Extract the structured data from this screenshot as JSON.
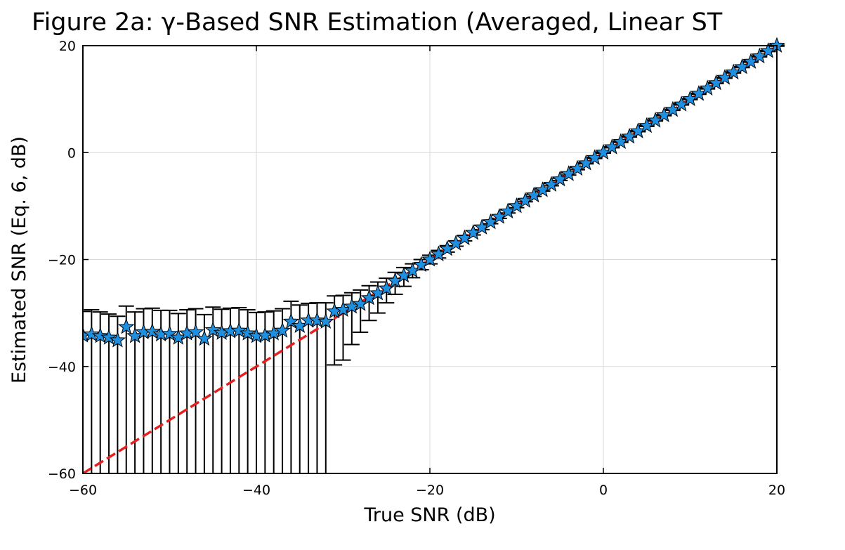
{
  "chart_data": {
    "type": "scatter",
    "title": "Figure 2a: γ-Based SNR Estimation (Averaged, Linear ST",
    "xlabel": "True SNR (dB)",
    "ylabel": "Estimated SNR (Eq. 6, dB)",
    "xlim": [
      -60,
      20
    ],
    "ylim": [
      -60,
      20
    ],
    "xticks": [
      -60,
      -40,
      -20,
      0,
      20
    ],
    "yticks": [
      -60,
      -40,
      -20,
      0,
      20
    ],
    "xtick_labels": [
      "−60",
      "−40",
      "−20",
      "0",
      "20"
    ],
    "ytick_labels": [
      "−60",
      "−40",
      "−20",
      "0",
      "20"
    ],
    "grid": true,
    "legend": "none",
    "colors": {
      "marker": "#1f8fe0",
      "reference_line": "#e81f1f",
      "errorbar": "#000000"
    },
    "reference_line": {
      "style": "dashed",
      "points": [
        [
          -60,
          -60
        ],
        [
          20,
          20
        ]
      ]
    },
    "series": [
      {
        "marker": "star",
        "x": [
          -60,
          -59,
          -58,
          -57,
          -56,
          -55,
          -54,
          -53,
          -52,
          -51,
          -50,
          -49,
          -48,
          -47,
          -46,
          -45,
          -44,
          -43,
          -42,
          -41,
          -40,
          -39,
          -38,
          -37,
          -36,
          -35,
          -34,
          -33,
          -32,
          -31,
          -30,
          -29,
          -28,
          -27,
          -26,
          -25,
          -24,
          -23,
          -22,
          -21,
          -20,
          -19,
          -18,
          -17,
          -16,
          -15,
          -14,
          -13,
          -12,
          -11,
          -10,
          -9,
          -8,
          -7,
          -6,
          -5,
          -4,
          -3,
          -2,
          -1,
          0,
          1,
          2,
          3,
          4,
          5,
          6,
          7,
          8,
          9,
          10,
          11,
          12,
          13,
          14,
          15,
          16,
          17,
          18,
          19,
          20
        ],
        "y": [
          -34.2,
          -34.0,
          -34.3,
          -34.6,
          -35.1,
          -32.6,
          -34.3,
          -33.6,
          -33.5,
          -34.0,
          -33.9,
          -34.6,
          -33.8,
          -33.6,
          -34.8,
          -33.2,
          -33.7,
          -33.4,
          -33.3,
          -33.8,
          -34.3,
          -34.2,
          -33.8,
          -33.3,
          -31.6,
          -32.4,
          -31.4,
          -31.4,
          -31.6,
          -29.7,
          -29.4,
          -28.8,
          -28.3,
          -27.2,
          -26.3,
          -25.4,
          -24.0,
          -23.0,
          -22.1,
          -21.0,
          -20.0,
          -19.0,
          -18.0,
          -17.0,
          -16.0,
          -15.0,
          -14.0,
          -13.0,
          -12.0,
          -11.0,
          -10.0,
          -9.0,
          -8.0,
          -7.0,
          -6.0,
          -5.0,
          -4.0,
          -3.0,
          -2.0,
          -1.0,
          0.0,
          1.0,
          2.0,
          3.0,
          4.0,
          5.0,
          6.0,
          7.0,
          8.0,
          9.0,
          10.0,
          11.0,
          12.0,
          13.0,
          14.0,
          15.0,
          16.0,
          17.0,
          18.0,
          19.0,
          20.0
        ],
        "error_upper": [
          4.5,
          4.6,
          4.5,
          4.4,
          4.5,
          3.9,
          4.5,
          4.4,
          4.4,
          4.5,
          4.4,
          4.5,
          4.4,
          4.4,
          4.5,
          4.3,
          4.4,
          4.3,
          4.3,
          4.4,
          4.4,
          4.4,
          4.2,
          4.1,
          3.8,
          3.9,
          3.2,
          3.3,
          3.5,
          2.9,
          2.7,
          2.6,
          2.6,
          2.3,
          2.1,
          1.9,
          1.6,
          1.5,
          1.3,
          1.0,
          0.8,
          0.7,
          0.6,
          0.5,
          0.5,
          0.4,
          0.4,
          0.3,
          0.3,
          0.3,
          0.3,
          0.2,
          0.2,
          0.2,
          0.2,
          0.2,
          0.2,
          0.2,
          0.1,
          0.1,
          0.1,
          0.1,
          0.1,
          0.1,
          0.1,
          0.1,
          0.1,
          0.1,
          0.1,
          0.1,
          0.1,
          0.1,
          0.1,
          0.1,
          0.1,
          0.1,
          0.1,
          0.1,
          0.1,
          0.1,
          0.1
        ],
        "error_lower": [
          30,
          30,
          30,
          30,
          30,
          30,
          30,
          30,
          30,
          30,
          30,
          30,
          30,
          30,
          30,
          30,
          30,
          30,
          30,
          30,
          30,
          30,
          30,
          30,
          30,
          30,
          30,
          30,
          30,
          10.0,
          9.4,
          7.1,
          5.3,
          4.2,
          3.7,
          2.7,
          2.5,
          2.0,
          1.3,
          0.9,
          0.8,
          0.7,
          0.6,
          0.5,
          0.5,
          0.4,
          0.4,
          0.3,
          0.3,
          0.3,
          0.3,
          0.2,
          0.2,
          0.2,
          0.2,
          0.2,
          0.2,
          0.2,
          0.1,
          0.1,
          0.1,
          0.1,
          0.1,
          0.1,
          0.1,
          0.1,
          0.1,
          0.1,
          0.1,
          0.1,
          0.1,
          0.1,
          0.1,
          0.1,
          0.1,
          0.1,
          0.1,
          0.1,
          0.1,
          0.1,
          0.1
        ]
      }
    ]
  }
}
